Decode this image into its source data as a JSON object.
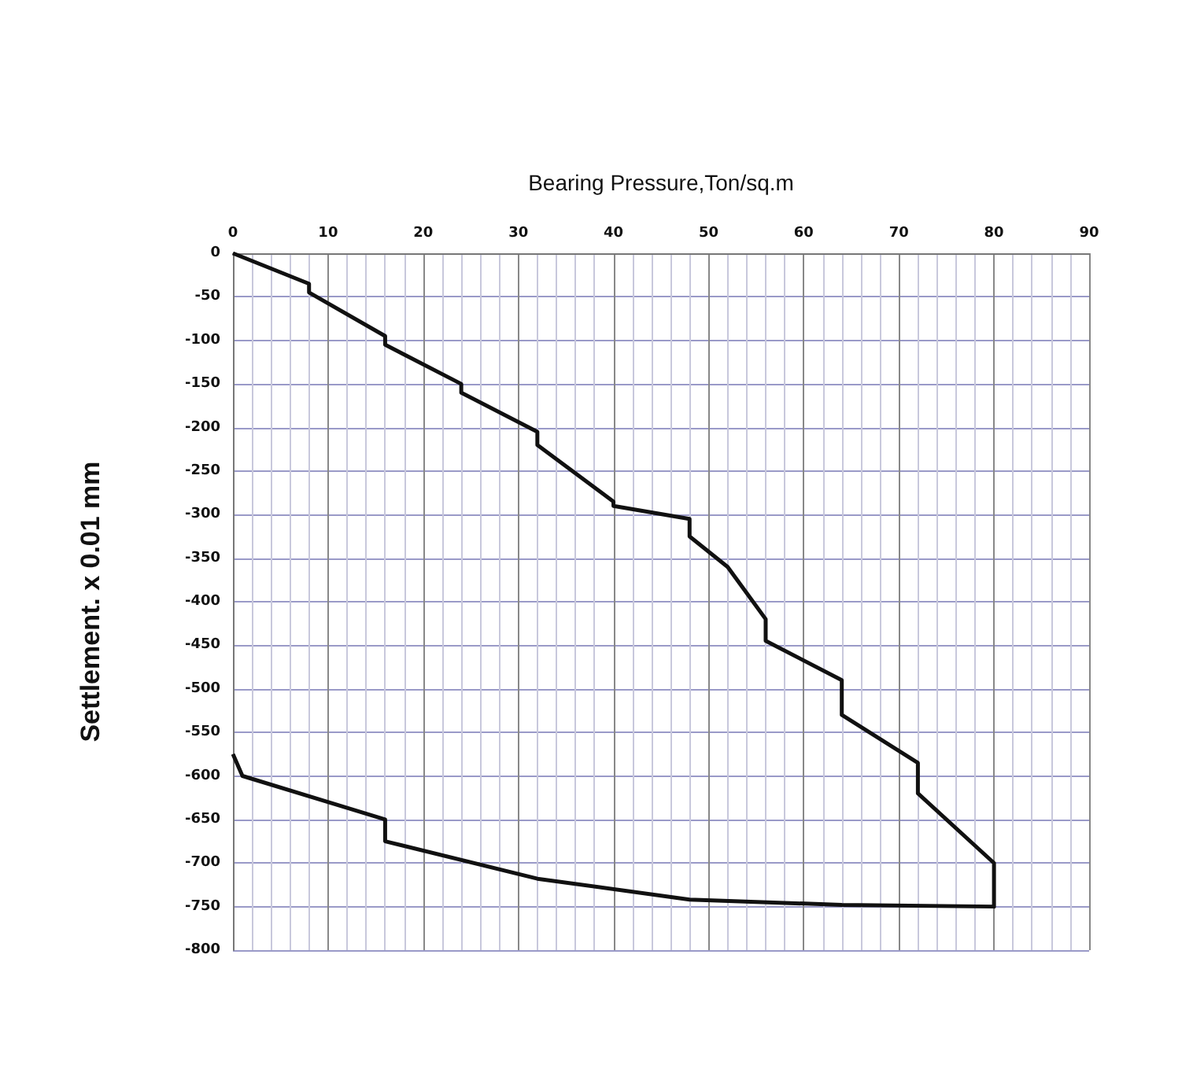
{
  "chart_data": {
    "type": "line",
    "xlabel": "Bearing Pressure,Ton/sq.m",
    "ylabel": "Settlement. x 0.01 mm",
    "series": [
      {
        "color": "#111111",
        "x": [
          0,
          8,
          8,
          16,
          16,
          24,
          24,
          32,
          32,
          40,
          40,
          48,
          48,
          52,
          56,
          56,
          64,
          64,
          72,
          72,
          80,
          80,
          64,
          48,
          32,
          16,
          16,
          1,
          0
        ],
        "values": [
          0,
          -35,
          -45,
          -95,
          -105,
          -150,
          -160,
          -205,
          -220,
          -285,
          -290,
          -305,
          -325,
          -360,
          -420,
          -445,
          -490,
          -530,
          -585,
          -620,
          -700,
          -750,
          -748,
          -742,
          -718,
          -675,
          -650,
          -600,
          -575
        ]
      }
    ],
    "xlim": [
      0,
      90
    ],
    "xticks": [
      0,
      10,
      20,
      30,
      40,
      50,
      60,
      70,
      80,
      90
    ],
    "ylim": [
      -800,
      0
    ],
    "yticks": [
      0,
      -50,
      -100,
      -150,
      -200,
      -250,
      -300,
      -350,
      -400,
      -450,
      -500,
      -550,
      -600,
      -650,
      -700,
      -750,
      -800
    ],
    "grid": true,
    "marker": "none",
    "line_style": "solid"
  }
}
